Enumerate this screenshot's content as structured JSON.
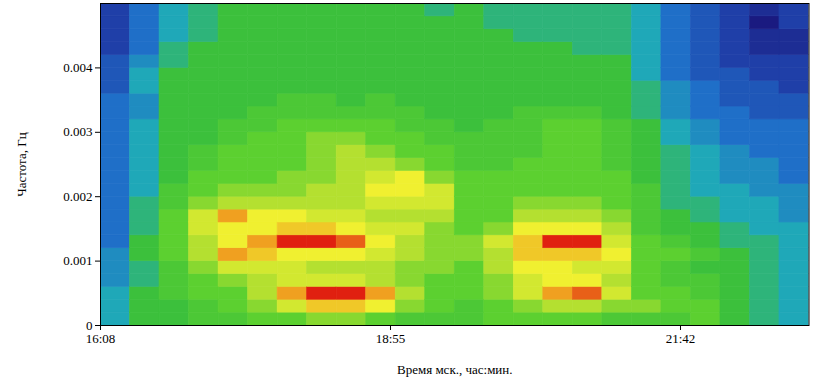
{
  "chart_data": {
    "type": "heatmap",
    "x_label": "Время мск., час:мин.",
    "y_label": "Частота, Гц",
    "xlim": [
      968,
      1376
    ],
    "ylim": [
      0,
      0.005
    ],
    "xticks": [
      {
        "value": 968,
        "label": "16:08"
      },
      {
        "value": 1135,
        "label": "18:55"
      },
      {
        "value": 1302,
        "label": "21:42"
      }
    ],
    "yticks": [
      0,
      0.001,
      0.002,
      0.003,
      0.004
    ],
    "x_bins": [
      968,
      985,
      1002,
      1019,
      1036,
      1053,
      1070,
      1087,
      1104,
      1121,
      1138,
      1155,
      1172,
      1189,
      1206,
      1223,
      1240,
      1257,
      1274,
      1291,
      1308,
      1325,
      1342,
      1359,
      1376
    ],
    "y_bins": [
      0,
      0.0002,
      0.0004,
      0.0006,
      0.0008,
      0.001,
      0.0012,
      0.0014,
      0.0016,
      0.0018,
      0.002,
      0.0022,
      0.0024,
      0.0026,
      0.0028,
      0.003,
      0.0032,
      0.0034,
      0.0036,
      0.0038,
      0.004,
      0.0042,
      0.0044,
      0.0046,
      0.0048,
      0.005
    ],
    "cells": [
      [
        4,
        4,
        4,
        3.5,
        3.5,
        3.5,
        3,
        3,
        3,
        3,
        3,
        3,
        3,
        3,
        3,
        3,
        3,
        3,
        2.5,
        2.5,
        2.5,
        2,
        2,
        2,
        2
      ],
      [
        5,
        5,
        5,
        4.5,
        4.5,
        5,
        5,
        4.5,
        4.5,
        4.5,
        4,
        4,
        4,
        4,
        4,
        4,
        3.5,
        3.5,
        4,
        4,
        3.5,
        3,
        3,
        3,
        3
      ],
      [
        5,
        5,
        5.5,
        5.5,
        5.5,
        6,
        6,
        6,
        6,
        5.5,
        5.5,
        5,
        5,
        5,
        5,
        5,
        5,
        5,
        5,
        5,
        4.5,
        4.5,
        4,
        4,
        4
      ],
      [
        5.5,
        5.5,
        6,
        6,
        6.5,
        7,
        7,
        7.5,
        7.5,
        6.5,
        6,
        6,
        5.5,
        5.5,
        5,
        5,
        5,
        5,
        5,
        5,
        5,
        5,
        4.5,
        4.5,
        4.5
      ],
      [
        5.5,
        6,
        6,
        6.5,
        7.5,
        9,
        8,
        8,
        9,
        7,
        6.5,
        6,
        6,
        6,
        5.5,
        5.5,
        5,
        5,
        5,
        5,
        5,
        5,
        5,
        5,
        5
      ],
      [
        6,
        6.5,
        7,
        7,
        7.5,
        8.5,
        9,
        8,
        8,
        7,
        6.5,
        6,
        6,
        6,
        6,
        5.5,
        5.5,
        5,
        5,
        5,
        5,
        5,
        5,
        5,
        5
      ],
      [
        6,
        7.5,
        9,
        7.5,
        7.5,
        8,
        10,
        8.5,
        8,
        7,
        6.5,
        6.5,
        6,
        6,
        6,
        6,
        5.5,
        5.5,
        5,
        5,
        5,
        5,
        5,
        5,
        5
      ],
      [
        6.5,
        8.5,
        10,
        7.5,
        7,
        8,
        10,
        8.5,
        7.5,
        7,
        7,
        6.5,
        6.5,
        6.5,
        6.5,
        6,
        5.5,
        5.5,
        5,
        5,
        5,
        5,
        5,
        5,
        5
      ],
      [
        6.5,
        8.5,
        10,
        7.5,
        7,
        8,
        9.5,
        8,
        7.5,
        7,
        7,
        7,
        7,
        7,
        6.5,
        6,
        5.5,
        5,
        5,
        5,
        5,
        5,
        5,
        5,
        5
      ],
      [
        6,
        8,
        9,
        7,
        7,
        7.5,
        8,
        7.5,
        7,
        7.5,
        8,
        7.5,
        7,
        6.5,
        6,
        6,
        5.5,
        5.5,
        5,
        5,
        5,
        5,
        5,
        5,
        5
      ],
      [
        5.5,
        6.5,
        7,
        6.5,
        6.5,
        7,
        7,
        7.5,
        7,
        7.5,
        8,
        8,
        6.5,
        6,
        6,
        5.5,
        5.5,
        5,
        5,
        5,
        5,
        5,
        5,
        5,
        5
      ],
      [
        5.5,
        6,
        6,
        6,
        6.5,
        6.5,
        6.5,
        6.5,
        7,
        7.5,
        7.5,
        6.5,
        6,
        6,
        5.5,
        5.5,
        5,
        5,
        5,
        5,
        5,
        5,
        5,
        5,
        4.5
      ],
      [
        5.5,
        5.5,
        6,
        6,
        6,
        6.5,
        6.5,
        6,
        6,
        6,
        6,
        6,
        5.5,
        5.5,
        5.5,
        5,
        5,
        5,
        5,
        5,
        5,
        5,
        5,
        5,
        5
      ],
      [
        6,
        6,
        6.5,
        6.5,
        7,
        7,
        7.5,
        6.5,
        6,
        6,
        6,
        6,
        5.5,
        5.5,
        5.5,
        5.5,
        5,
        5,
        5,
        5,
        5,
        5,
        5,
        4.5,
        4.5
      ],
      [
        6,
        6.5,
        7.5,
        7.5,
        8,
        8.5,
        8.5,
        8,
        7,
        6.5,
        6,
        6,
        6,
        5.5,
        5.5,
        5.5,
        5.5,
        5,
        5,
        5,
        5,
        5,
        4.5,
        4.5,
        4.5
      ],
      [
        6,
        7,
        9,
        8,
        8,
        8.5,
        10,
        8,
        7,
        6.5,
        6,
        6,
        6,
        6,
        6,
        6,
        5.5,
        5,
        5,
        5,
        5,
        5,
        4.5,
        4.5,
        4.5
      ],
      [
        6,
        7,
        9.5,
        8,
        7.5,
        8.5,
        10,
        8,
        7,
        6.5,
        6,
        6,
        6,
        6,
        6,
        6,
        5.5,
        5,
        5,
        5,
        5,
        4.5,
        4.5,
        4.5,
        4.5
      ],
      [
        5.5,
        6.5,
        7.5,
        7,
        7.5,
        8,
        7.5,
        7,
        6.5,
        6,
        6,
        6,
        5.5,
        5.5,
        5.5,
        5.5,
        5,
        5,
        5,
        5,
        5,
        4.5,
        4.5,
        4.5,
        4.5
      ],
      [
        5.5,
        6.5,
        6,
        6,
        6,
        6,
        6,
        5.5,
        5.5,
        5.5,
        5.5,
        5,
        5,
        5,
        5,
        5,
        4.5,
        4.5,
        4.5,
        4,
        4,
        4,
        4,
        4,
        4
      ],
      [
        5.5,
        6,
        6,
        5.5,
        5.5,
        6,
        5.5,
        5,
        5,
        4.5,
        4.5,
        4.5,
        4.5,
        4.5,
        4,
        4,
        3.5,
        3.5,
        3.5,
        3,
        3,
        3,
        3,
        3,
        3
      ],
      [
        6,
        6,
        5.5,
        5.5,
        5,
        5.5,
        5,
        5,
        4.5,
        4.5,
        4,
        4,
        4,
        4,
        3.5,
        3.5,
        3,
        3,
        3,
        2.5,
        2.5,
        2.5,
        2.5,
        2.5,
        2.5
      ],
      [
        5,
        5,
        5,
        5,
        5,
        5,
        4.5,
        4.5,
        4,
        4,
        4,
        3.5,
        3.5,
        3.5,
        3,
        3,
        3,
        2.5,
        2.5,
        2.5,
        2,
        2,
        2,
        2,
        2
      ],
      [
        4.5,
        4.5,
        4.5,
        4.5,
        4.5,
        4.5,
        4.5,
        4,
        4,
        4,
        3.5,
        3.5,
        3.5,
        3,
        3,
        3,
        2.5,
        2.5,
        2.5,
        2,
        2,
        1.5,
        1.5,
        1,
        1.5
      ],
      [
        4,
        4,
        4,
        4,
        4,
        4,
        4,
        4,
        3.5,
        3.5,
        3.5,
        3,
        3,
        3,
        3,
        3,
        2.5,
        2.5,
        2,
        2,
        2,
        1.5,
        1.5,
        2,
        2
      ]
    ]
  }
}
